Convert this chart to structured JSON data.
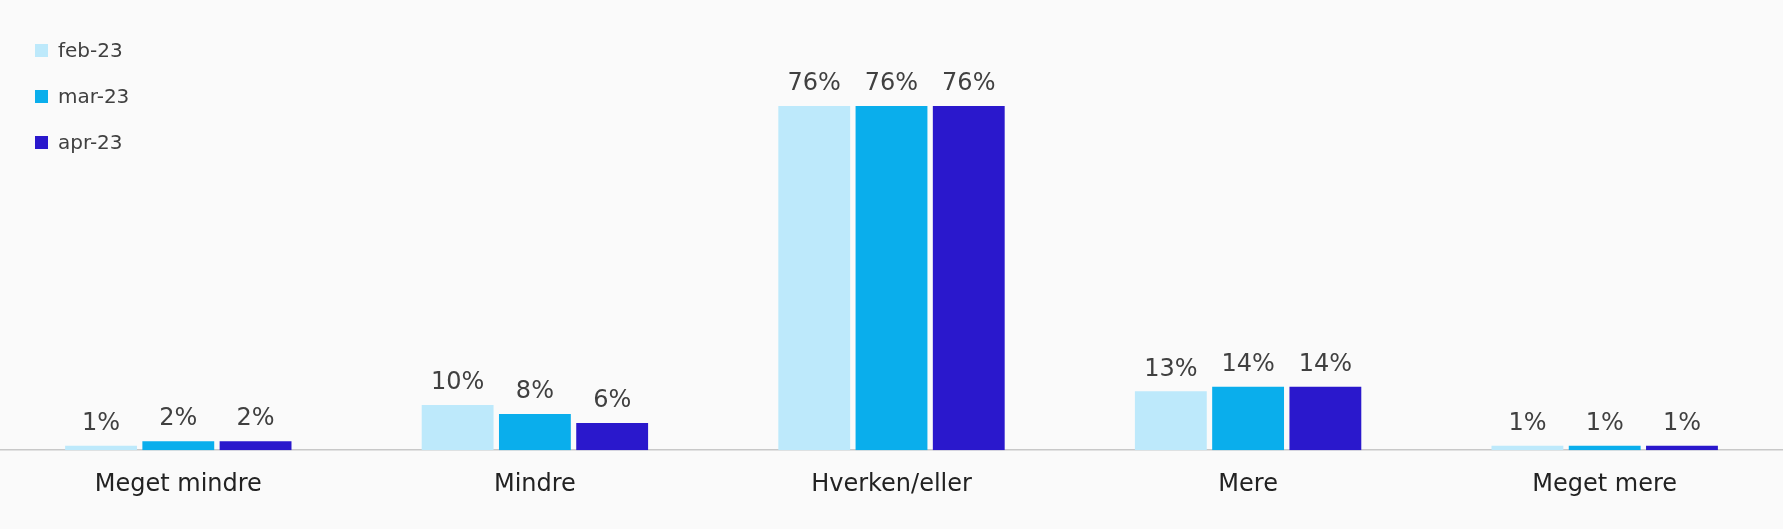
{
  "chart_data": {
    "type": "bar",
    "categories": [
      "Meget mindre",
      "Mindre",
      "Hverken/eller",
      "Mere",
      "Meget mere"
    ],
    "series": [
      {
        "name": "feb-23",
        "color": "#bde9fb",
        "values": [
          1,
          10,
          76,
          13,
          1
        ],
        "value_labels": [
          "1%",
          "10%",
          "76%",
          "13%",
          "1%"
        ]
      },
      {
        "name": "mar-23",
        "color": "#0aaeec",
        "values": [
          2,
          8,
          76,
          14,
          1
        ],
        "value_labels": [
          "2%",
          "8%",
          "76%",
          "14%",
          "1%"
        ]
      },
      {
        "name": "apr-23",
        "color": "#2a18cc",
        "values": [
          2,
          6,
          76,
          14,
          1
        ],
        "value_labels": [
          "2%",
          "6%",
          "76%",
          "14%",
          "1%"
        ]
      }
    ],
    "legend": "top left",
    "grid": false
  }
}
